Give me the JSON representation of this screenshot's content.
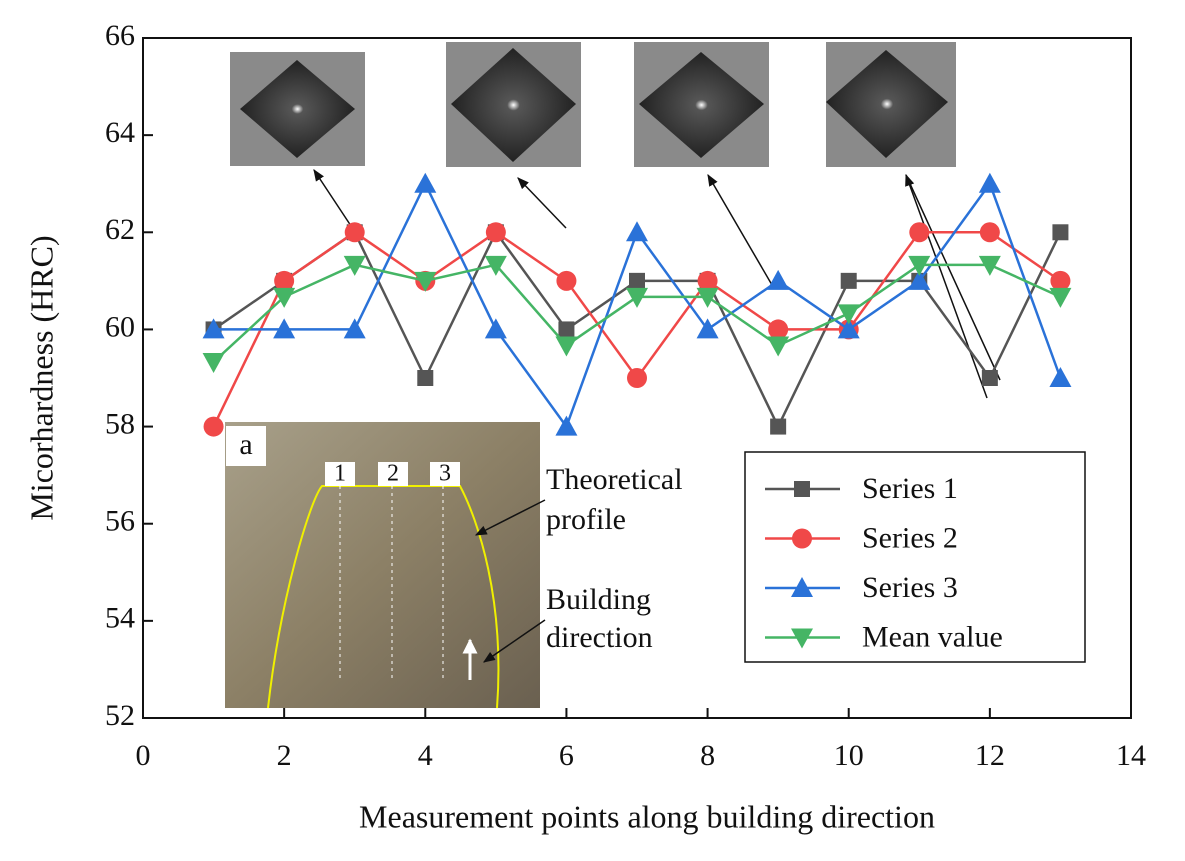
{
  "chart_data": {
    "type": "line",
    "xlabel": "Measurement points along building direction",
    "ylabel": "Micorhardness  (HRC)",
    "x": [
      1,
      2,
      3,
      4,
      5,
      6,
      7,
      8,
      9,
      10,
      11,
      12,
      13
    ],
    "xlim": [
      0,
      14
    ],
    "xticks": [
      0,
      2,
      4,
      6,
      8,
      10,
      12,
      14
    ],
    "ylim": [
      52,
      66
    ],
    "yticks": [
      52,
      54,
      56,
      58,
      60,
      62,
      64,
      66
    ],
    "series": [
      {
        "name": "Series 1",
        "color": "#555555",
        "marker": "square",
        "values": [
          60,
          61,
          62,
          59,
          62,
          60,
          61,
          61,
          58,
          61,
          61,
          59,
          62
        ]
      },
      {
        "name": "Series 2",
        "color": "#f04848",
        "marker": "circle",
        "values": [
          58,
          61,
          62,
          61,
          62,
          61,
          59,
          61,
          60,
          60,
          62,
          62,
          61
        ]
      },
      {
        "name": "Series 3",
        "color": "#2a72d8",
        "marker": "triangle-up",
        "values": [
          60,
          60,
          60,
          63,
          60,
          58,
          62,
          60,
          61,
          60,
          61,
          63,
          59
        ]
      },
      {
        "name": "Mean value",
        "color": "#45b565",
        "marker": "triangle-down",
        "values": [
          59.33,
          60.67,
          61.33,
          61,
          61.33,
          59.67,
          60.67,
          60.67,
          59.67,
          60.33,
          61.33,
          61.33,
          60.67
        ]
      }
    ],
    "inset": {
      "label": "a",
      "points": [
        {
          "text": "1",
          "color": "#777777"
        },
        {
          "text": "2",
          "color": "#e02020"
        },
        {
          "text": "3",
          "color": "#3030d0"
        }
      ],
      "annotations": [
        [
          "Theoretical",
          "profile"
        ],
        [
          "Building",
          "direction"
        ]
      ]
    }
  }
}
